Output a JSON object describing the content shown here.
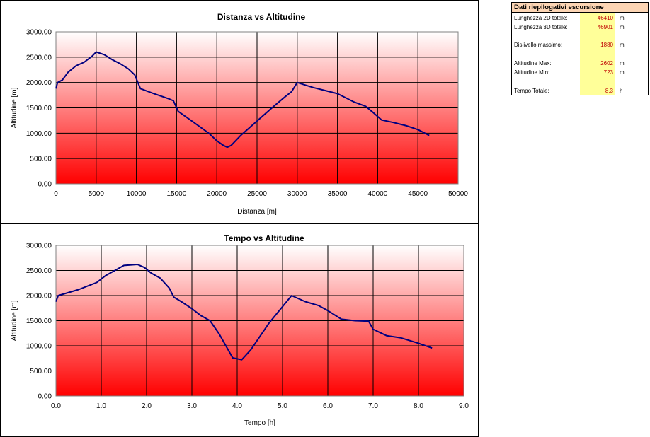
{
  "colors": {
    "line": "#000080",
    "plot_top": "#ffffff",
    "plot_bottom": "#ff0000",
    "summary_header": "#fcd5b4",
    "summary_values_bg": "#ffff99",
    "summary_value_text": "#c00000"
  },
  "summary": {
    "title": "Dati riepilogativi escursione",
    "rows": [
      {
        "label": "Lunghezza 2D totale:",
        "value": "46410",
        "unit": "m"
      },
      {
        "label": "Lunghezza 3D totale:",
        "value": "46901",
        "unit": "m"
      },
      {
        "label": "Dislivello massimo:",
        "value": "1880",
        "unit": "m"
      },
      {
        "label": "Altitudine Max:",
        "value": "2602",
        "unit": "m"
      },
      {
        "label": "Altitudine Min:",
        "value": "723",
        "unit": "m"
      },
      {
        "label": "Tempo Totale:",
        "value": "8.3",
        "unit": "h"
      }
    ]
  },
  "chart_data": [
    {
      "type": "line",
      "title": "Distanza vs Altitudine",
      "xlabel": "Distanza [m]",
      "ylabel": "Altitudine [m]",
      "xlim": [
        0,
        50000
      ],
      "ylim": [
        0,
        3000
      ],
      "x_ticks": [
        "0",
        "5000",
        "10000",
        "15000",
        "20000",
        "25000",
        "30000",
        "35000",
        "40000",
        "45000",
        "50000"
      ],
      "y_ticks": [
        "0.00",
        "500.00",
        "1000.00",
        "1500.00",
        "2000.00",
        "2500.00",
        "3000.00"
      ],
      "grid": true,
      "series": [
        {
          "x": [
            0,
            200,
            800,
            1500,
            2500,
            3500,
            4500,
            5000,
            6000,
            7000,
            8000,
            9000,
            9800,
            10500,
            12000,
            14000,
            14600,
            15200,
            17000,
            19000,
            20000,
            20800,
            21300,
            21800,
            23000,
            25000,
            27000,
            28500,
            29300,
            30000,
            31000,
            32000,
            33500,
            35000,
            37000,
            38500,
            39500,
            40500,
            42000,
            43500,
            45000,
            46000,
            46410
          ],
          "y": [
            1880,
            2000,
            2050,
            2200,
            2330,
            2400,
            2520,
            2602,
            2550,
            2450,
            2370,
            2270,
            2150,
            1880,
            1790,
            1680,
            1640,
            1430,
            1230,
            1000,
            850,
            760,
            723,
            760,
            960,
            1240,
            1520,
            1720,
            1820,
            2000,
            1950,
            1900,
            1840,
            1780,
            1620,
            1530,
            1400,
            1260,
            1210,
            1150,
            1070,
            990,
            955
          ]
        }
      ]
    },
    {
      "type": "line",
      "title": "Tempo vs Altitudine",
      "xlabel": "Tempo [h]",
      "ylabel": "Altitudine [m]",
      "xlim": [
        0,
        9
      ],
      "ylim": [
        0,
        3000
      ],
      "x_ticks": [
        "0.0",
        "1.0",
        "2.0",
        "3.0",
        "4.0",
        "5.0",
        "6.0",
        "7.0",
        "8.0",
        "9.0"
      ],
      "y_ticks": [
        "0.00",
        "500.00",
        "1000.00",
        "1500.00",
        "2000.00",
        "2500.00",
        "3000.00"
      ],
      "grid": true,
      "series": [
        {
          "x": [
            0,
            0.05,
            0.5,
            0.9,
            1.1,
            1.5,
            1.8,
            1.95,
            2.1,
            2.3,
            2.5,
            2.6,
            2.8,
            3.0,
            3.2,
            3.4,
            3.6,
            3.9,
            4.1,
            4.3,
            4.7,
            5.2,
            5.5,
            5.8,
            6.0,
            6.3,
            6.6,
            6.9,
            7.0,
            7.3,
            7.6,
            8.0,
            8.3
          ],
          "y": [
            1880,
            2000,
            2120,
            2260,
            2400,
            2600,
            2620,
            2560,
            2450,
            2350,
            2150,
            1970,
            1860,
            1740,
            1600,
            1500,
            1240,
            760,
            723,
            920,
            1450,
            2000,
            1880,
            1800,
            1700,
            1530,
            1500,
            1490,
            1330,
            1200,
            1160,
            1050,
            955
          ]
        }
      ]
    }
  ]
}
